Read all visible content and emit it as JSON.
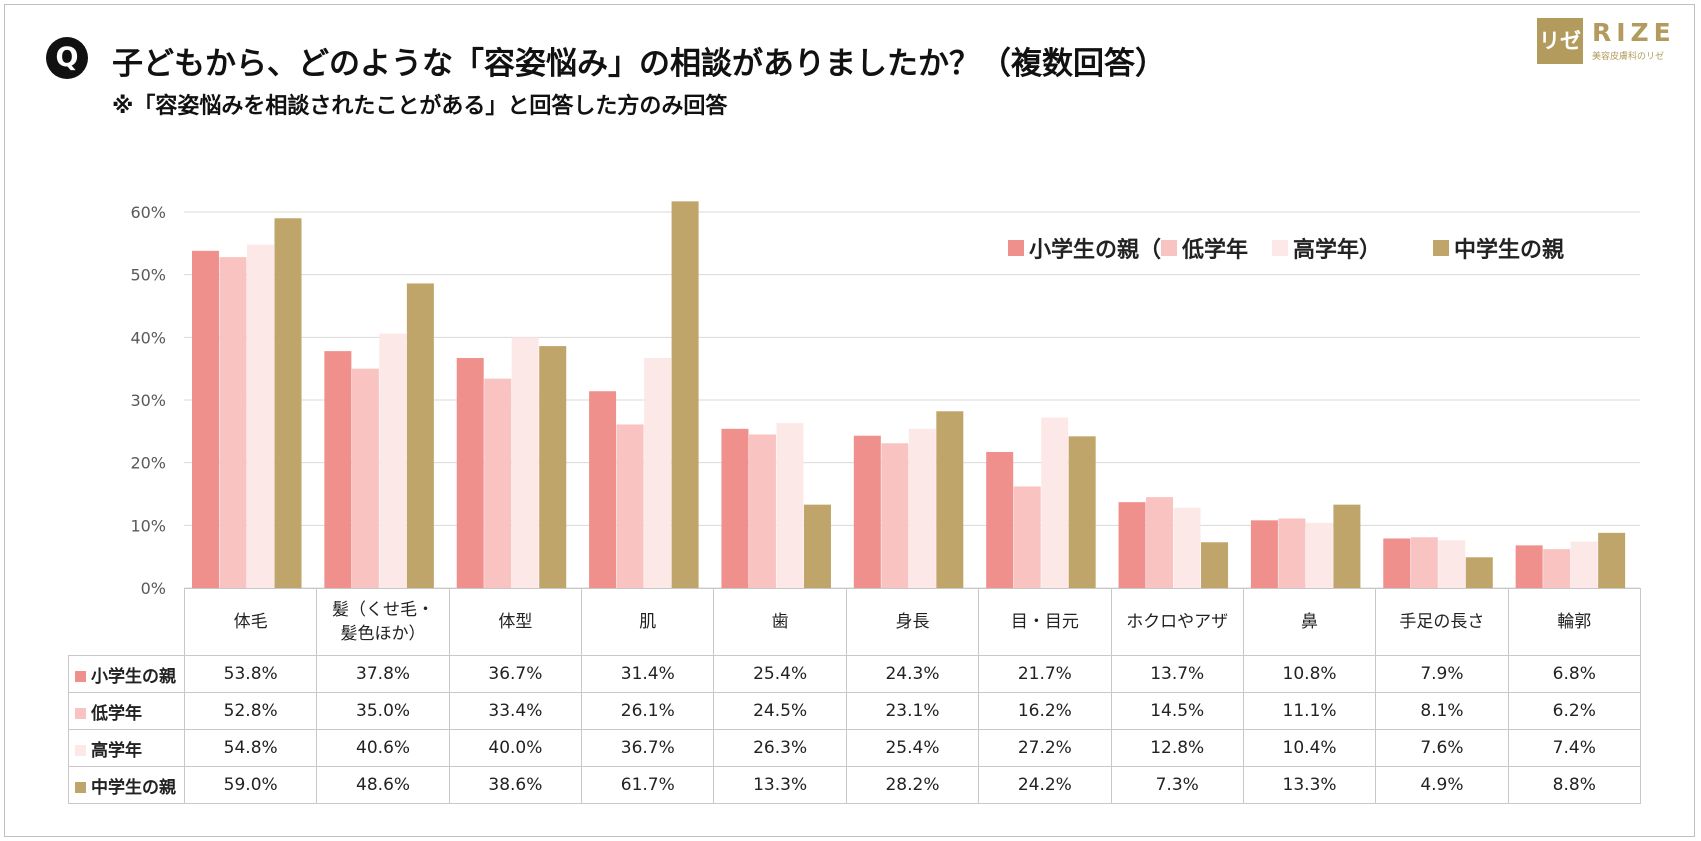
{
  "header": {
    "q_badge": "Q",
    "title": "子どもから、どのような「容姿悩み」の相談がありましたか？（複数回答）",
    "subtitle": "※「容姿悩みを相談されたことがある」と回答した方のみ回答"
  },
  "logo": {
    "mark": "リゼ",
    "word": "RIZE",
    "tagline": "美容皮膚科のリゼ"
  },
  "legend": {
    "elementary_open": "小学生の親（",
    "lower": "低学年",
    "upper_close": "高学年）",
    "junior_high": "中学生の親"
  },
  "chart_data": {
    "type": "bar",
    "ylim": [
      0,
      60
    ],
    "yticks": [
      "0%",
      "10%",
      "20%",
      "30%",
      "40%",
      "50%",
      "60%"
    ],
    "grid": true,
    "legend_position": "top-right",
    "categories": [
      "体毛",
      "髪（くせ毛・髪色ほか）",
      "体型",
      "肌",
      "歯",
      "身長",
      "目・目元",
      "ホクロやアザ",
      "鼻",
      "手足の長さ",
      "輪郭"
    ],
    "series": [
      {
        "name": "小学生の親",
        "color": "#f0908c",
        "values": [
          53.8,
          37.8,
          36.7,
          31.4,
          25.4,
          24.3,
          21.7,
          13.7,
          10.8,
          7.9,
          6.8
        ]
      },
      {
        "name": "低学年",
        "color": "#f8c3c1",
        "values": [
          52.8,
          35.0,
          33.4,
          26.1,
          24.5,
          23.1,
          16.2,
          14.5,
          11.1,
          8.1,
          6.2
        ]
      },
      {
        "name": "高学年",
        "color": "#fde8e8",
        "values": [
          54.8,
          40.6,
          40.0,
          36.7,
          26.3,
          25.4,
          27.2,
          12.8,
          10.4,
          7.6,
          7.4
        ]
      },
      {
        "name": "中学生の親",
        "color": "#bfa56a",
        "values": [
          59.0,
          48.6,
          38.6,
          61.7,
          13.3,
          28.2,
          24.2,
          7.3,
          13.3,
          4.9,
          8.8
        ]
      }
    ]
  },
  "table": {
    "header_lines": [
      [
        "体毛"
      ],
      [
        "髪（くせ毛・",
        "髪色ほか）"
      ],
      [
        "体型"
      ],
      [
        "肌"
      ],
      [
        "歯"
      ],
      [
        "身長"
      ],
      [
        "目・目元"
      ],
      [
        "ホクロやアザ"
      ],
      [
        "鼻"
      ],
      [
        "手足の長さ"
      ],
      [
        "輪郭"
      ]
    ],
    "rows": [
      {
        "label": "小学生の親",
        "color": "#f0908c",
        "cells": [
          "53.8%",
          "37.8%",
          "36.7%",
          "31.4%",
          "25.4%",
          "24.3%",
          "21.7%",
          "13.7%",
          "10.8%",
          "7.9%",
          "6.8%"
        ]
      },
      {
        "label": "低学年",
        "color": "#f8c3c1",
        "cells": [
          "52.8%",
          "35.0%",
          "33.4%",
          "26.1%",
          "24.5%",
          "23.1%",
          "16.2%",
          "14.5%",
          "11.1%",
          "8.1%",
          "6.2%"
        ]
      },
      {
        "label": "高学年",
        "color": "#fde8e8",
        "cells": [
          "54.8%",
          "40.6%",
          "40.0%",
          "36.7%",
          "26.3%",
          "25.4%",
          "27.2%",
          "12.8%",
          "10.4%",
          "7.6%",
          "7.4%"
        ]
      },
      {
        "label": "中学生の親",
        "color": "#bfa56a",
        "cells": [
          "59.0%",
          "48.6%",
          "38.6%",
          "61.7%",
          "13.3%",
          "28.2%",
          "24.2%",
          "7.3%",
          "13.3%",
          "4.9%",
          "8.8%"
        ]
      }
    ]
  }
}
